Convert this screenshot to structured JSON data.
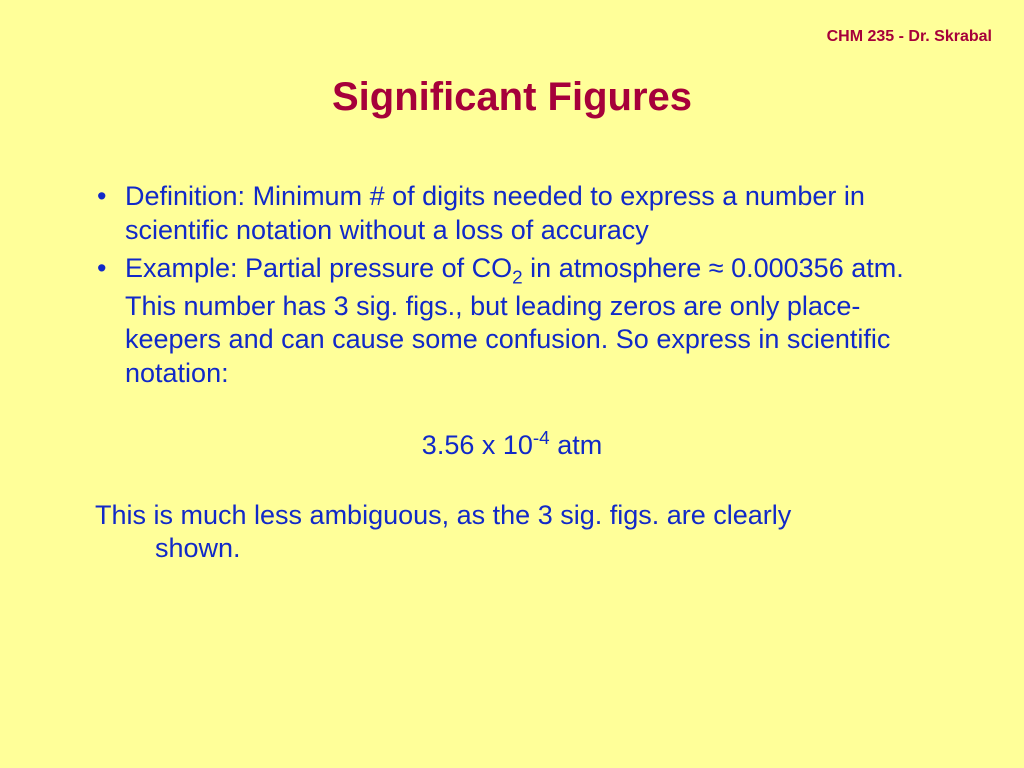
{
  "colors": {
    "background": "#ffff99",
    "heading": "#a6003a",
    "body_text": "#1129c8"
  },
  "typography": {
    "title_fontsize": 40,
    "body_fontsize": 27,
    "header_note_fontsize": 16,
    "font_family": "Arial"
  },
  "header_note": "CHM 235 - Dr. Skrabal",
  "title": "Significant Figures",
  "bullets": [
    {
      "text": "Definition:  Minimum # of digits needed to express a number in scientific notation without a loss of accuracy"
    },
    {
      "prefix": "Example: Partial pressure of CO",
      "sub": "2",
      "suffix": " in atmosphere ≈ 0.000356 atm.  This number has 3 sig. figs., but leading zeros are only place-keepers and can cause some confusion.  So express in scientific notation:"
    }
  ],
  "scientific_notation": {
    "prefix": "3.56 x 10",
    "sup": "-4",
    "suffix": " atm"
  },
  "closing": {
    "line1": "This is much less ambiguous, as the 3 sig. figs. are clearly",
    "line2": "shown."
  }
}
